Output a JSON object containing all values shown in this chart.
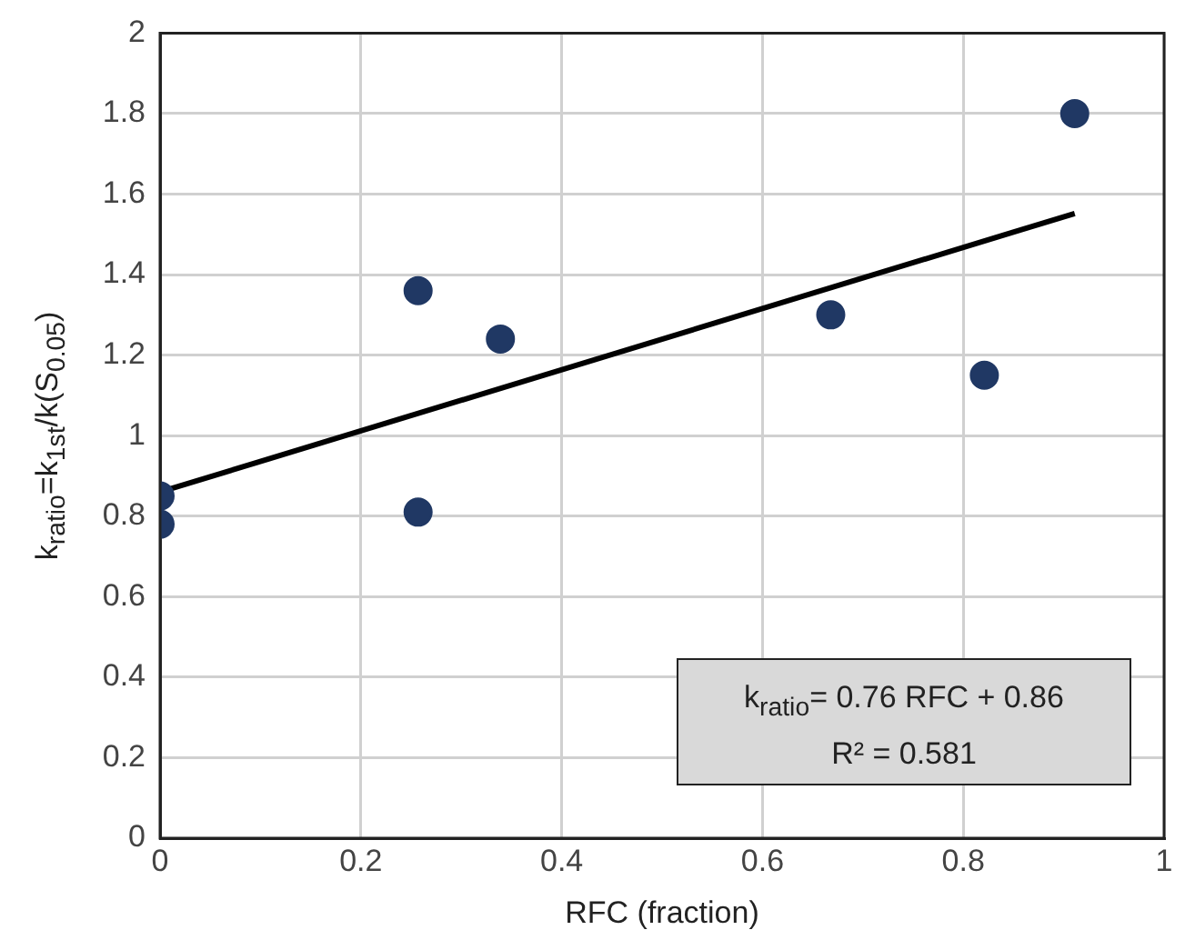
{
  "chart_data": {
    "type": "scatter",
    "xlabel": "RFC (fraction)",
    "ylabel": "k$_{ratio}$=k$_{1st}$/k(S$_{0.05}$)",
    "xlim": [
      0,
      1
    ],
    "xticks": [
      0,
      0.2,
      0.4,
      0.6,
      0.8,
      1
    ],
    "ylim": [
      0,
      2
    ],
    "yticks": [
      0,
      0.2,
      0.4,
      0.6,
      0.8,
      1,
      1.2,
      1.4,
      1.6,
      1.8,
      2
    ],
    "grid": true,
    "legend": false,
    "marker": "circle",
    "series": [
      {
        "color": "#203864",
        "x": [
          0,
          0,
          0.257,
          0.257,
          0.339,
          0.668,
          0.821,
          0.911
        ],
        "values": [
          0.85,
          0.78,
          1.36,
          0.81,
          1.24,
          1.3,
          1.15,
          1.8
        ]
      },
      {
        "type": "line",
        "color": "#000000",
        "marker": "none",
        "line_style": "solid",
        "x": [
          0,
          0.911
        ],
        "values": [
          0.86,
          1.552
        ]
      }
    ],
    "annotations": [
      "k$_{ratio}$= 0.76 RFC + 0.86",
      "R² = 0.581"
    ]
  }
}
